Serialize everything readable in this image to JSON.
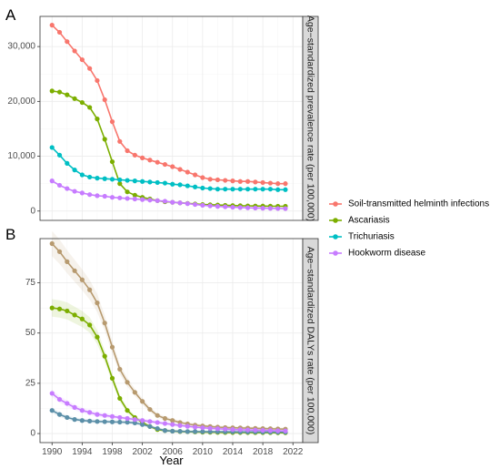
{
  "chart_data": [
    {
      "type": "line",
      "panel_label": "A",
      "strip_label": "Age−standardized prevalence rate (per 100,000)",
      "xlabel": "",
      "xlim": [
        1990,
        2021
      ],
      "ylim": [
        -1700,
        35500
      ],
      "yticks": [
        0,
        10000,
        20000,
        30000
      ],
      "ytick_labels": [
        "0",
        "10,000",
        "20,000",
        "30,000"
      ],
      "grid": true,
      "x": [
        1990,
        1991,
        1992,
        1993,
        1994,
        1995,
        1996,
        1997,
        1998,
        1999,
        2000,
        2001,
        2002,
        2003,
        2004,
        2005,
        2006,
        2007,
        2008,
        2009,
        2010,
        2011,
        2012,
        2013,
        2014,
        2015,
        2016,
        2017,
        2018,
        2019,
        2020,
        2021
      ],
      "series": [
        {
          "name": "Soil-transmitted helminth infections",
          "color": "#F8766D",
          "values": [
            33900,
            32600,
            30900,
            29200,
            27600,
            26000,
            23800,
            20300,
            16300,
            12700,
            11000,
            10200,
            9700,
            9300,
            8900,
            8500,
            8100,
            7600,
            7100,
            6600,
            6100,
            5800,
            5700,
            5600,
            5500,
            5400,
            5400,
            5300,
            5200,
            5100,
            5000,
            5000
          ]
        },
        {
          "name": "Ascariasis",
          "color": "#7CAE00",
          "values": [
            21900,
            21700,
            21200,
            20500,
            19800,
            18900,
            16800,
            13100,
            9000,
            5000,
            3500,
            2900,
            2500,
            2200,
            1900,
            1700,
            1600,
            1500,
            1400,
            1300,
            1200,
            1150,
            1100,
            1050,
            1000,
            980,
            950,
            930,
            910,
            890,
            880,
            870
          ]
        },
        {
          "name": "Trichuriasis",
          "color": "#00BFC4",
          "values": [
            11600,
            10200,
            8700,
            7500,
            6600,
            6200,
            6000,
            5900,
            5800,
            5700,
            5600,
            5500,
            5400,
            5300,
            5200,
            5100,
            4900,
            4800,
            4600,
            4400,
            4200,
            4100,
            4000,
            4000,
            4000,
            4000,
            4000,
            4000,
            4000,
            4000,
            3900,
            3900
          ]
        },
        {
          "name": "Hookworm disease",
          "color": "#C77CFF",
          "values": [
            5500,
            4700,
            4100,
            3600,
            3300,
            3000,
            2800,
            2700,
            2500,
            2400,
            2300,
            2200,
            2100,
            2000,
            1900,
            1800,
            1600,
            1500,
            1350,
            1200,
            1050,
            950,
            850,
            780,
            700,
            650,
            600,
            560,
            520,
            500,
            470,
            450
          ]
        }
      ]
    },
    {
      "type": "line",
      "panel_label": "B",
      "strip_label": "Age−standardized DALYs rate (per 100,000)",
      "xlabel": "Year",
      "xlim": [
        1990,
        2021
      ],
      "ylim": [
        -4.5,
        97
      ],
      "yticks": [
        0,
        25,
        50,
        75
      ],
      "ytick_labels": [
        "0",
        "25",
        "50",
        "75"
      ],
      "xticks": [
        1990,
        1994,
        1998,
        2002,
        2006,
        2010,
        2014,
        2018,
        2022
      ],
      "xtick_labels": [
        "1990",
        "1994",
        "1998",
        "2002",
        "2006",
        "2010",
        "2014",
        "2018",
        "2022"
      ],
      "grid": true,
      "x": [
        1990,
        1991,
        1992,
        1993,
        1994,
        1995,
        1996,
        1997,
        1998,
        1999,
        2000,
        2001,
        2002,
        2003,
        2004,
        2005,
        2006,
        2007,
        2008,
        2009,
        2010,
        2011,
        2012,
        2013,
        2014,
        2015,
        2016,
        2017,
        2018,
        2019,
        2020,
        2021
      ],
      "series": [
        {
          "name": "Soil-transmitted helminth infections",
          "color": "#B79A6F",
          "values": [
            94.5,
            90.5,
            85.5,
            81,
            76.5,
            71.5,
            65,
            55,
            43,
            32,
            25.5,
            20.5,
            16,
            12,
            9,
            7.5,
            6.5,
            5.5,
            4.8,
            4.2,
            3.8,
            3.5,
            3.2,
            3,
            2.9,
            2.8,
            2.7,
            2.6,
            2.5,
            2.4,
            2.3,
            2.2
          ]
        },
        {
          "name": "Ascariasis",
          "color": "#7CAE00",
          "values": [
            62.5,
            62,
            61,
            59,
            57,
            54,
            48,
            38.5,
            27.5,
            17.5,
            11.5,
            8,
            5.5,
            3.5,
            2,
            1.5,
            1.2,
            1,
            0.9,
            0.8,
            0.7,
            0.65,
            0.6,
            0.55,
            0.5,
            0.5,
            0.5,
            0.45,
            0.45,
            0.45,
            0.4,
            0.4
          ]
        },
        {
          "name": "Trichuriasis",
          "color": "#5B8FA8",
          "values": [
            11.5,
            9.5,
            8,
            7,
            6.5,
            6.2,
            6,
            5.9,
            5.8,
            5.7,
            5.6,
            5.3,
            4.5,
            3.5,
            2.5,
            1.5,
            1.2,
            1.1,
            1,
            1,
            0.95,
            0.9,
            0.9,
            0.85,
            0.85,
            0.8,
            0.8,
            0.8,
            0.75,
            0.75,
            0.7,
            0.7
          ]
        },
        {
          "name": "Hookworm disease",
          "color": "#C77CFF",
          "values": [
            20,
            17,
            15,
            13,
            11.5,
            10.5,
            9.5,
            9,
            8.5,
            8,
            7.5,
            7,
            6.5,
            6,
            5.5,
            5,
            4.5,
            4,
            3.6,
            3.2,
            2.9,
            2.6,
            2.4,
            2.2,
            2,
            1.9,
            1.8,
            1.7,
            1.6,
            1.5,
            1.4,
            1.3
          ]
        }
      ]
    }
  ],
  "legend": {
    "placement": "right",
    "items": [
      {
        "label": "Soil-transmitted helminth infections",
        "color": "#F8766D"
      },
      {
        "label": "Ascariasis",
        "color": "#7CAE00"
      },
      {
        "label": "Trichuriasis",
        "color": "#00BFC4"
      },
      {
        "label": "Hookworm disease",
        "color": "#C77CFF"
      }
    ]
  },
  "colors": {
    "panel_background": "#ffffff",
    "grid_major": "#ebebeb",
    "grid_minor": "#f4f4f4",
    "border": "#333333",
    "strip_background": "#d9d9d9",
    "text": "#000000",
    "tick_text": "#4d4d4d"
  }
}
